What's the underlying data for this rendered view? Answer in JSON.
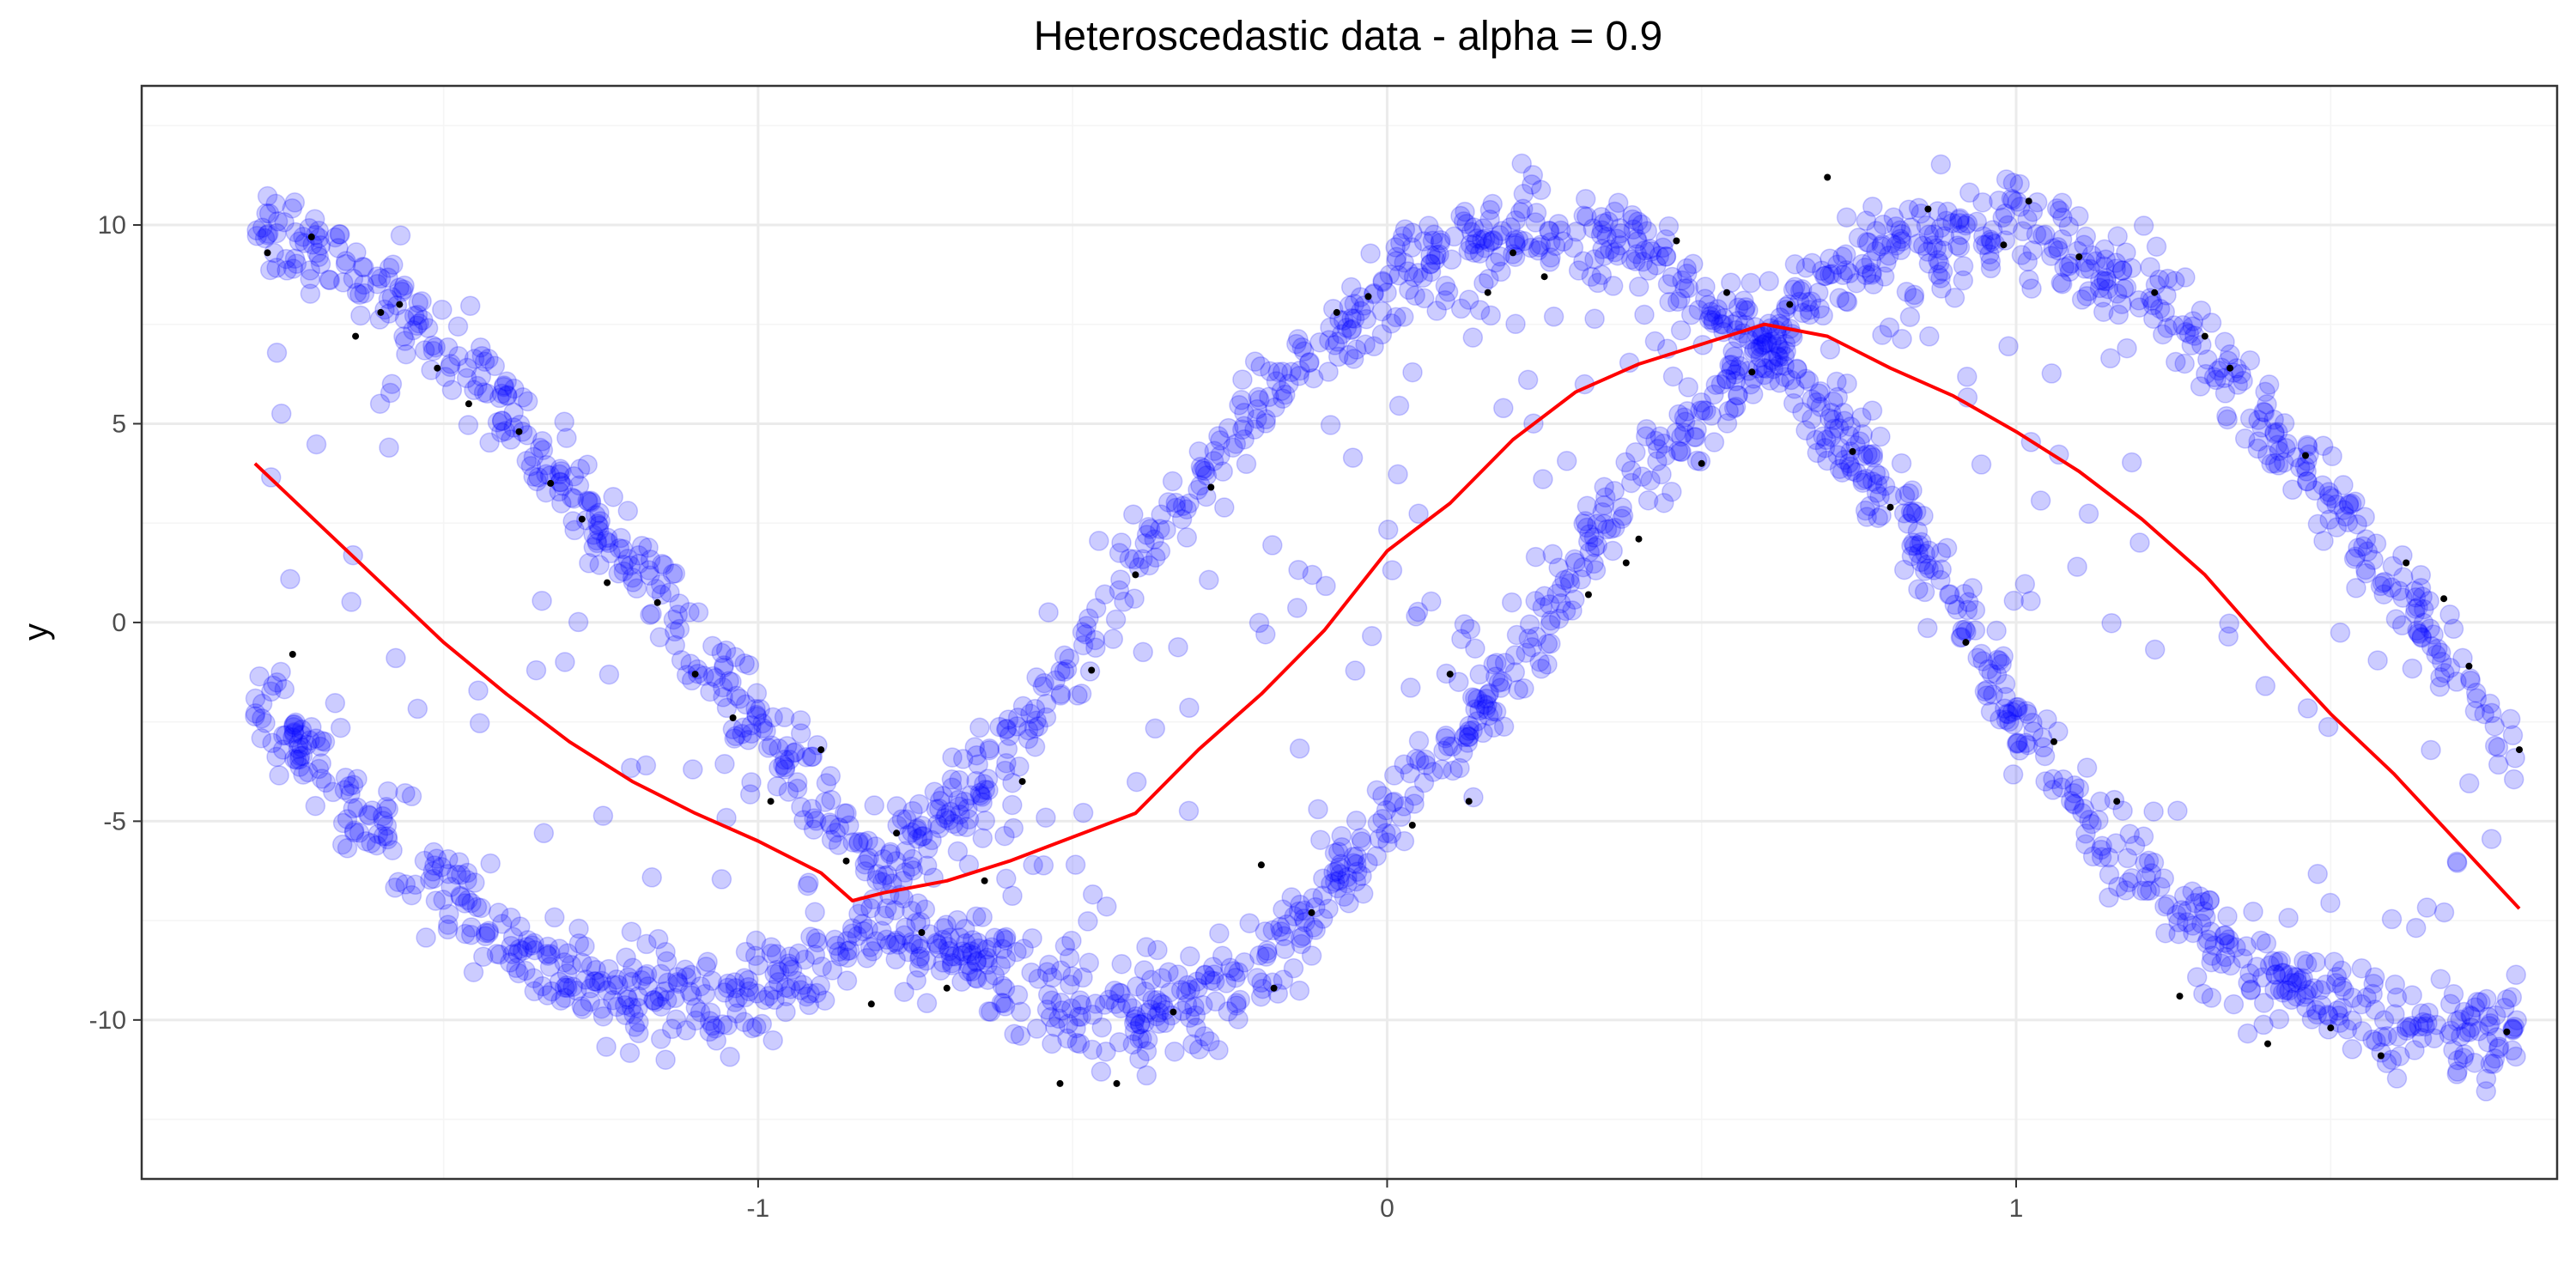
{
  "chart_data": {
    "type": "scatter",
    "title": "Heteroscedastic data - alpha = 0.9",
    "xlabel": "",
    "ylabel": "y",
    "xlim": [
      -1.98,
      1.86
    ],
    "ylim": [
      -14.0,
      13.5
    ],
    "x_ticks": [
      -1,
      0,
      1
    ],
    "x_tick_labels": [
      "-1",
      "0",
      "1"
    ],
    "y_ticks": [
      -10,
      -5,
      0,
      5,
      10
    ],
    "y_tick_labels": [
      "-10",
      "-5",
      "0",
      "5",
      "10"
    ],
    "grid": true,
    "legend": "none",
    "colors": {
      "points": "#0000ff",
      "line": "#ff0000",
      "markers": "#000000",
      "panel_border": "#333333",
      "grid": "#ebebeb"
    },
    "series": [
      {
        "kind": "scatter",
        "description_of_bands": "upper band approx 10*cos(2.5x), lower band approx -10*cos(2.5x - 2.5); heteroscedastic noise",
        "x_range": [
          -1.8,
          1.8
        ],
        "upper_band_samples": [
          [
            -1.8,
            10.0
          ],
          [
            -1.6,
            8.5
          ],
          [
            -1.4,
            5.5
          ],
          [
            -1.2,
            1.5
          ],
          [
            -1.0,
            -2.5
          ],
          [
            -0.8,
            -6.5
          ],
          [
            -0.6,
            -3.0
          ],
          [
            -0.4,
            1.5
          ],
          [
            -0.2,
            5.5
          ],
          [
            0.0,
            8.5
          ],
          [
            0.2,
            10.0
          ],
          [
            0.4,
            9.5
          ],
          [
            0.6,
            7.0
          ],
          [
            0.8,
            9.5
          ],
          [
            1.0,
            10.0
          ],
          [
            1.2,
            8.5
          ],
          [
            1.4,
            5.0
          ],
          [
            1.6,
            1.0
          ],
          [
            1.8,
            -3.5
          ]
        ],
        "lower_band_samples": [
          [
            -1.8,
            -2.0
          ],
          [
            -1.6,
            -5.5
          ],
          [
            -1.4,
            -8.0
          ],
          [
            -1.2,
            -9.5
          ],
          [
            -1.0,
            -9.5
          ],
          [
            -0.8,
            -7.5
          ],
          [
            -0.6,
            -9.0
          ],
          [
            -0.4,
            -10.0
          ],
          [
            -0.2,
            -8.5
          ],
          [
            0.0,
            -5.0
          ],
          [
            0.2,
            -1.0
          ],
          [
            0.4,
            3.5
          ],
          [
            0.6,
            7.0
          ],
          [
            0.8,
            3.0
          ],
          [
            1.0,
            -2.5
          ],
          [
            1.2,
            -6.5
          ],
          [
            1.4,
            -9.0
          ],
          [
            1.6,
            -10.0
          ],
          [
            1.8,
            -10.5
          ]
        ]
      },
      {
        "kind": "line",
        "points": [
          [
            -1.8,
            4.0
          ],
          [
            -1.7,
            2.5
          ],
          [
            -1.6,
            1.0
          ],
          [
            -1.5,
            -0.5
          ],
          [
            -1.4,
            -1.8
          ],
          [
            -1.3,
            -3.0
          ],
          [
            -1.2,
            -4.0
          ],
          [
            -1.1,
            -4.8
          ],
          [
            -1.0,
            -5.5
          ],
          [
            -0.9,
            -6.3
          ],
          [
            -0.85,
            -7.0
          ],
          [
            -0.8,
            -6.8
          ],
          [
            -0.7,
            -6.5
          ],
          [
            -0.6,
            -6.0
          ],
          [
            -0.5,
            -5.4
          ],
          [
            -0.4,
            -4.8
          ],
          [
            -0.3,
            -3.2
          ],
          [
            -0.2,
            -1.8
          ],
          [
            -0.1,
            -0.2
          ],
          [
            0.0,
            1.8
          ],
          [
            0.1,
            3.0
          ],
          [
            0.2,
            4.6
          ],
          [
            0.3,
            5.8
          ],
          [
            0.4,
            6.5
          ],
          [
            0.5,
            7.0
          ],
          [
            0.6,
            7.5
          ],
          [
            0.7,
            7.2
          ],
          [
            0.8,
            6.4
          ],
          [
            0.9,
            5.7
          ],
          [
            1.0,
            4.8
          ],
          [
            1.1,
            3.8
          ],
          [
            1.2,
            2.6
          ],
          [
            1.3,
            1.2
          ],
          [
            1.4,
            -0.6
          ],
          [
            1.5,
            -2.3
          ],
          [
            1.6,
            -3.8
          ],
          [
            1.7,
            -5.5
          ],
          [
            1.8,
            -7.2
          ]
        ]
      },
      {
        "kind": "markers",
        "points": [
          [
            -1.78,
            9.3
          ],
          [
            -1.74,
            -0.8
          ],
          [
            -1.71,
            9.7
          ],
          [
            -1.64,
            7.2
          ],
          [
            -1.6,
            7.8
          ],
          [
            -1.57,
            8.0
          ],
          [
            -1.51,
            6.4
          ],
          [
            -1.46,
            5.5
          ],
          [
            -1.38,
            4.8
          ],
          [
            -1.33,
            3.5
          ],
          [
            -1.28,
            2.6
          ],
          [
            -1.24,
            1.0
          ],
          [
            -1.16,
            0.5
          ],
          [
            -1.1,
            -1.3
          ],
          [
            -1.04,
            -2.4
          ],
          [
            -0.98,
            -4.5
          ],
          [
            -0.9,
            -3.2
          ],
          [
            -0.86,
            -6.0
          ],
          [
            -0.82,
            -9.6
          ],
          [
            -0.78,
            -5.3
          ],
          [
            -0.74,
            -7.8
          ],
          [
            -0.7,
            -9.2
          ],
          [
            -0.64,
            -6.5
          ],
          [
            -0.58,
            -4.0
          ],
          [
            -0.52,
            -11.6
          ],
          [
            -0.47,
            -1.2
          ],
          [
            -0.43,
            -11.6
          ],
          [
            -0.4,
            1.2
          ],
          [
            -0.34,
            -9.8
          ],
          [
            -0.28,
            3.4
          ],
          [
            -0.2,
            -6.1
          ],
          [
            -0.18,
            -9.2
          ],
          [
            -0.12,
            -7.3
          ],
          [
            -0.08,
            7.8
          ],
          [
            -0.03,
            8.2
          ],
          [
            0.04,
            -5.1
          ],
          [
            0.1,
            -1.3
          ],
          [
            0.13,
            -4.5
          ],
          [
            0.16,
            8.3
          ],
          [
            0.2,
            9.3
          ],
          [
            0.25,
            8.7
          ],
          [
            0.32,
            0.7
          ],
          [
            0.38,
            1.5
          ],
          [
            0.4,
            2.1
          ],
          [
            0.46,
            9.6
          ],
          [
            0.5,
            4.0
          ],
          [
            0.54,
            8.3
          ],
          [
            0.58,
            6.3
          ],
          [
            0.64,
            8.0
          ],
          [
            0.7,
            11.2
          ],
          [
            0.74,
            4.3
          ],
          [
            0.8,
            2.9
          ],
          [
            0.86,
            10.4
          ],
          [
            0.92,
            -0.5
          ],
          [
            0.98,
            9.5
          ],
          [
            1.02,
            10.6
          ],
          [
            1.06,
            -3.0
          ],
          [
            1.1,
            9.2
          ],
          [
            1.16,
            -4.5
          ],
          [
            1.22,
            8.3
          ],
          [
            1.26,
            -9.4
          ],
          [
            1.3,
            7.2
          ],
          [
            1.34,
            6.4
          ],
          [
            1.4,
            -10.6
          ],
          [
            1.46,
            4.2
          ],
          [
            1.5,
            -10.2
          ],
          [
            1.58,
            -10.9
          ],
          [
            1.62,
            1.5
          ],
          [
            1.68,
            0.6
          ],
          [
            1.72,
            -1.1
          ],
          [
            1.78,
            -10.3
          ],
          [
            1.8,
            -3.2
          ]
        ]
      }
    ]
  }
}
